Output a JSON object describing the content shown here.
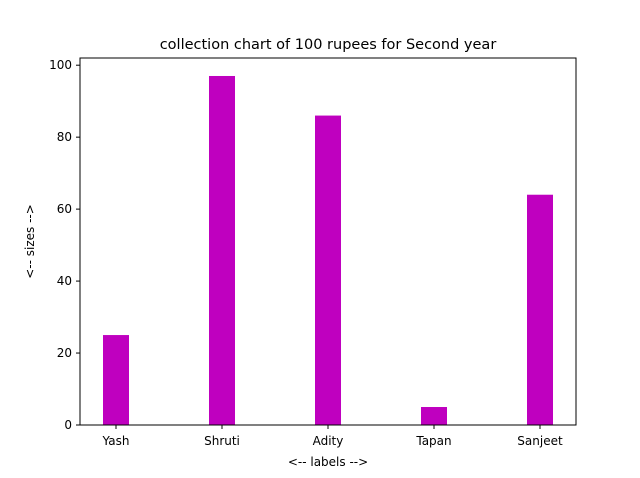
{
  "chart_data": {
    "type": "bar",
    "title": "collection chart of 100 rupees for Second year",
    "xlabel": "<-- labels -->",
    "ylabel": "<-- sizes -->",
    "categories": [
      "Yash",
      "Shruti",
      "Adity",
      "Tapan",
      "Sanjeet"
    ],
    "values": [
      25,
      97,
      86,
      5,
      64
    ],
    "ylim": [
      0,
      102
    ],
    "yticks": [
      0,
      20,
      40,
      60,
      80,
      100
    ],
    "grid": false,
    "bar_color": "#bf00bf"
  }
}
